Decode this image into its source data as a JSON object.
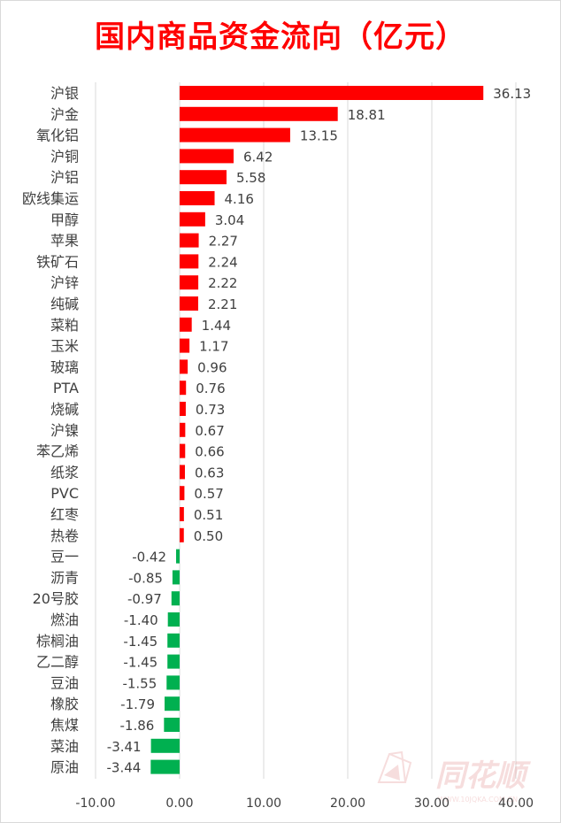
{
  "chart_data": {
    "type": "bar",
    "orientation": "horizontal",
    "title": "国内商品资金流向（亿元）",
    "categories": [
      "沪银",
      "沪金",
      "氧化铝",
      "沪铜",
      "沪铝",
      "欧线集运",
      "甲醇",
      "苹果",
      "铁矿石",
      "沪锌",
      "纯碱",
      "菜粕",
      "玉米",
      "玻璃",
      "PTA",
      "烧碱",
      "沪镍",
      "苯乙烯",
      "纸浆",
      "PVC",
      "红枣",
      "热卷",
      "豆一",
      "沥青",
      "20号胶",
      "燃油",
      "棕榈油",
      "乙二醇",
      "豆油",
      "橡胶",
      "焦煤",
      "菜油",
      "原油"
    ],
    "values": [
      36.13,
      18.81,
      13.15,
      6.42,
      5.58,
      4.16,
      3.04,
      2.27,
      2.24,
      2.22,
      2.21,
      1.44,
      1.17,
      0.96,
      0.76,
      0.73,
      0.67,
      0.66,
      0.63,
      0.57,
      0.51,
      0.5,
      -0.42,
      -0.85,
      -0.97,
      -1.4,
      -1.45,
      -1.45,
      -1.55,
      -1.79,
      -1.86,
      -3.41,
      -3.44
    ],
    "value_labels": [
      "36.13",
      "18.81",
      "13.15",
      "6.42",
      "5.58",
      "4.16",
      "3.04",
      "2.27",
      "2.24",
      "2.22",
      "2.21",
      "1.44",
      "1.17",
      "0.96",
      "0.76",
      "0.73",
      "0.67",
      "0.66",
      "0.63",
      "0.57",
      "0.51",
      "0.50",
      "-0.42",
      "-0.85",
      "-0.97",
      "-1.40",
      "-1.45",
      "-1.45",
      "-1.55",
      "-1.79",
      "-1.86",
      "-3.41",
      "-3.44"
    ],
    "xlim": [
      -10,
      40
    ],
    "x_ticks": [
      "-10.00",
      "0.00",
      "10.00",
      "20.00",
      "30.00",
      "40.00"
    ],
    "xlabel": "",
    "ylabel": "",
    "grid": "vertical",
    "legend": "none",
    "colors": {
      "positive": "#ff0000",
      "negative": "#00b050",
      "grid": "#d9d9d9",
      "label": "#404040",
      "title": "#ff0000"
    }
  },
  "watermark": {
    "brand": "同花顺",
    "url": "WWW.10JQKA.COM.CN"
  }
}
